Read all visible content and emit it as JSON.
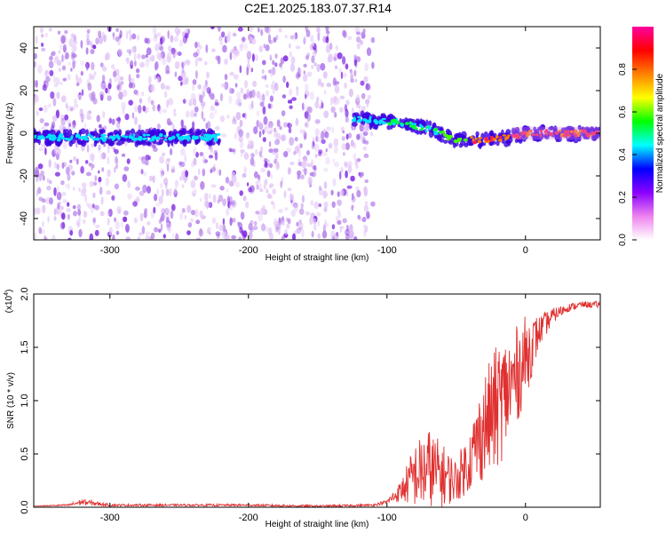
{
  "title": "C2E1.2025.183.07.37.R14",
  "chart_data": [
    {
      "type": "heatmap",
      "title": "C2E1.2025.183.07.37.R14",
      "xlabel": "Height of straight line (km)",
      "ylabel": "Frequency (Hz)",
      "xlim": [
        -355,
        54
      ],
      "ylim": [
        -50,
        50
      ],
      "xticks": [
        -300,
        -200,
        -100,
        0
      ],
      "yticks": [
        -40,
        -20,
        0,
        20,
        40
      ],
      "colorbar": {
        "label": "Normalized spectral amplitude",
        "range": [
          0,
          1
        ],
        "ticks": [
          0.0,
          0.2,
          0.4,
          0.6,
          0.8
        ],
        "tick_labels": [
          "0.0",
          "0.2",
          "0.4",
          "0.6",
          "0.8"
        ],
        "colormap": [
          "#ffffff",
          "#ee82ee",
          "#8a00ff",
          "#0000ff",
          "#00ffff",
          "#00ff00",
          "#ffff00",
          "#ff8000",
          "#ff0000",
          "#ff00a0"
        ]
      },
      "features": [
        {
          "name": "noise-band",
          "x_range": [
            -355,
            -110
          ],
          "freq_range": [
            -50,
            50
          ]
        },
        {
          "name": "carrier",
          "x": [
            -355,
            -225,
            -125,
            -110,
            -90,
            -70,
            -50,
            -30,
            -10,
            0,
            20,
            54
          ],
          "freq": [
            -2,
            -2,
            7,
            6,
            5,
            2,
            -3,
            -3,
            -2,
            0,
            0,
            0
          ]
        }
      ],
      "grid": false
    },
    {
      "type": "line",
      "xlabel": "Height of straight line (km)",
      "ylabel": "SNR (10 * v/v)",
      "multiplier_label": "(x10",
      "multiplier_exp": "4",
      "multiplier_close": ")",
      "xlim": [
        -355,
        54
      ],
      "ylim": [
        0,
        2.0
      ],
      "xticks": [
        -300,
        -200,
        -100,
        0
      ],
      "yticks": [
        0.0,
        0.5,
        1.0,
        1.5,
        2.0
      ],
      "ytick_labels": [
        "0.0",
        "0.5",
        "1.0",
        "1.5",
        "2.0"
      ],
      "color": "#e03030",
      "series": [
        {
          "x": [
            -355,
            -330,
            -320,
            -300,
            -250,
            -200,
            -150,
            -110,
            -100,
            -90,
            -80,
            -70,
            -60,
            -50,
            -40,
            -30,
            -20,
            -10,
            0,
            10,
            20,
            30,
            40,
            54
          ],
          "y": [
            0.01,
            0.02,
            0.05,
            0.02,
            0.02,
            0.02,
            0.01,
            0.02,
            0.05,
            0.15,
            0.3,
            0.35,
            0.3,
            0.25,
            0.45,
            0.75,
            0.95,
            1.15,
            1.4,
            1.65,
            1.8,
            1.87,
            1.9,
            1.9
          ],
          "spread": [
            0,
            0.01,
            0.03,
            0.01,
            0.01,
            0.01,
            0.01,
            0.01,
            0.02,
            0.1,
            0.3,
            0.4,
            0.3,
            0.2,
            0.3,
            0.5,
            0.6,
            0.5,
            0.4,
            0.15,
            0.07,
            0.04,
            0.03,
            0.03
          ]
        }
      ],
      "grid": false
    }
  ]
}
